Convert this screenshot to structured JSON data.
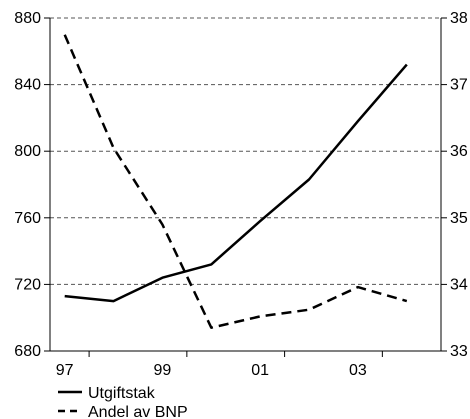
{
  "chart_data": {
    "type": "line",
    "x": [
      1997,
      1998,
      1999,
      2000,
      2001,
      2002,
      2003,
      2004
    ],
    "x_tick_labels": [
      "97",
      "99",
      "01",
      "03"
    ],
    "x_tick_values": [
      1997,
      1999,
      2001,
      2003
    ],
    "xlim": [
      1996.7,
      2004.7
    ],
    "y_left": {
      "lim": [
        680,
        880
      ],
      "ticks": [
        "680",
        "720",
        "760",
        "800",
        "840",
        "880"
      ]
    },
    "y_right": {
      "lim": [
        33,
        38
      ],
      "ticks": [
        "33",
        "34",
        "35",
        "36",
        "37",
        "38"
      ]
    },
    "grid": "horizontal dashed",
    "series": [
      {
        "name": "Utgiftstak",
        "axis": "left",
        "style": "solid",
        "color": "#000000",
        "values": [
          713,
          710,
          724,
          732,
          758,
          783,
          818,
          852
        ]
      },
      {
        "name": "Andel av BNP",
        "axis": "right",
        "style": "dashed",
        "color": "#000000",
        "values": [
          37.75,
          36.05,
          34.9,
          33.35,
          33.52,
          33.62,
          33.96,
          33.75
        ]
      }
    ],
    "legend": "bottom-left"
  }
}
